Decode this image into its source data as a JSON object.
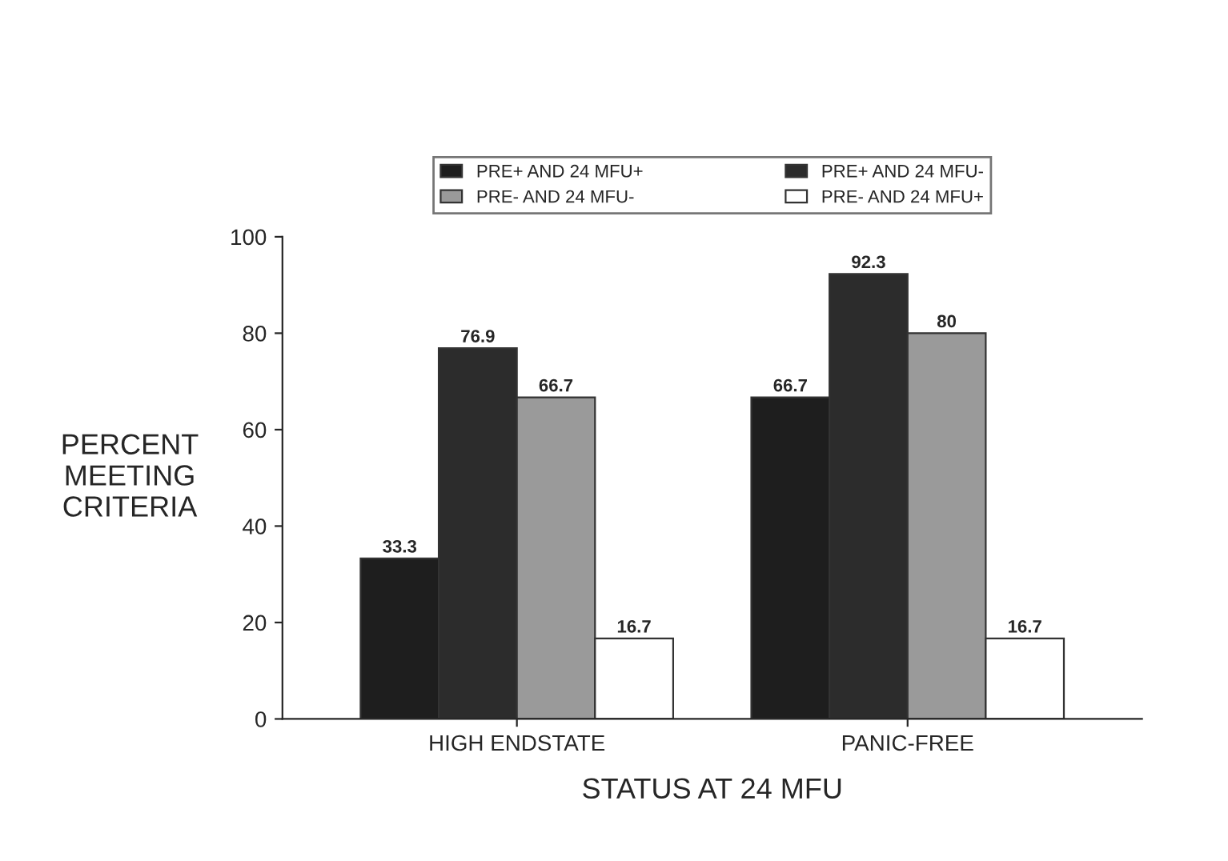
{
  "chart_data": {
    "type": "bar",
    "xlabel": "STATUS AT 24 MFU",
    "ylabel": "PERCENT\nMEETING\nCRITERIA",
    "categories": [
      "HIGH ENDSTATE",
      "PANIC-FREE"
    ],
    "series": [
      {
        "name": "PRE+ AND 24 MFU+",
        "color": "#1e1e1e",
        "values": [
          33.3,
          66.7
        ]
      },
      {
        "name": "PRE+ AND 24 MFU-",
        "color": "#2c2c2c",
        "values": [
          76.9,
          92.3
        ]
      },
      {
        "name": "PRE- AND 24 MFU-",
        "color": "#9a9a9a",
        "values": [
          66.7,
          80
        ]
      },
      {
        "name": "PRE- AND 24 MFU+",
        "color": "#ffffff",
        "values": [
          16.7,
          16.7
        ]
      }
    ],
    "ylim": [
      0,
      100
    ],
    "yticks": [
      0,
      20,
      40,
      60,
      80,
      100
    ],
    "data_labels": true,
    "grid": false,
    "legend": "top"
  }
}
